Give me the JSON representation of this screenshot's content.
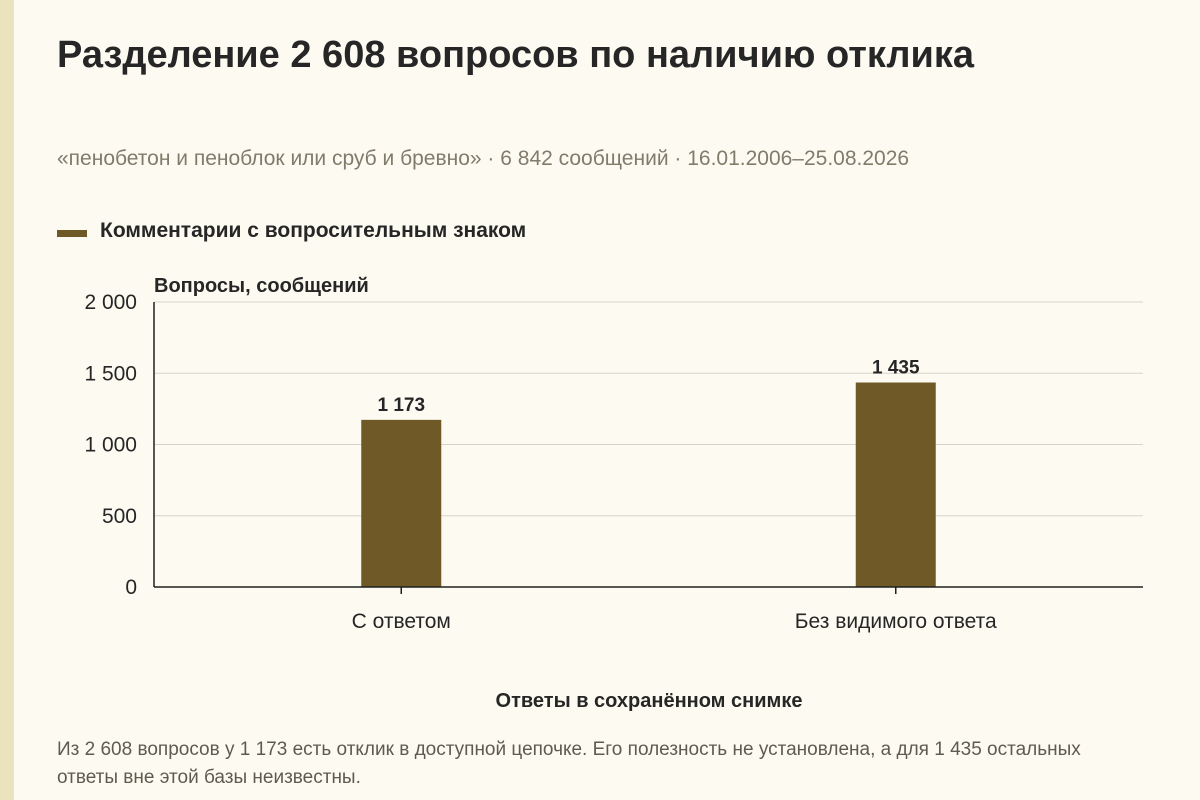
{
  "header": {
    "title": "Разделение 2 608 вопросов по наличию отклика",
    "subtitle": "«пенобетон и пеноблок или сруб и бревно» · 6 842 сообщений · 16.01.2006–25.08.2026"
  },
  "footnote": "Из 2 608 вопросов у 1 173 есть отклик в доступной цепочке. Его полезность не установлена, а для 1 435 остальных ответы вне этой базы неизвестны.",
  "colors": {
    "bar": "#6f5a27",
    "grid": "#d6d3ca",
    "axis": "#1f1f1f",
    "background": "#fdfbf1"
  },
  "chart_data": {
    "type": "bar",
    "categories": [
      "С ответом",
      "Без видимого ответа"
    ],
    "series": [
      {
        "name": "Комментарии с вопросительным знаком",
        "values": [
          1173,
          1435
        ],
        "value_labels": [
          "1 173",
          "1 435"
        ]
      }
    ],
    "ylabel": "Вопросы, сообщений",
    "xlabel": "Ответы в сохранённом снимке",
    "ylim": [
      0,
      2000
    ],
    "yticks": [
      0,
      500,
      1000,
      1500,
      2000
    ],
    "ytick_labels": [
      "0",
      "500",
      "1 000",
      "1 500",
      "2 000"
    ],
    "grid": true,
    "legend_position": "top-left"
  }
}
